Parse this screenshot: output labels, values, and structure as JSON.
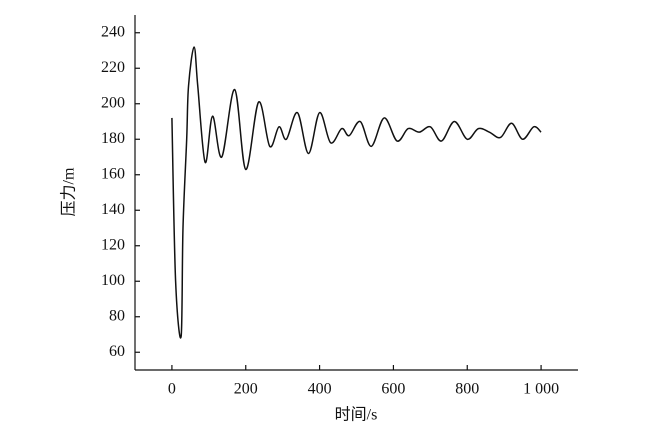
{
  "chart_data": {
    "type": "line",
    "xlabel": "时间/s",
    "ylabel": "压力/m",
    "x": [
      0,
      10,
      25,
      30,
      40,
      45,
      60,
      70,
      90,
      110,
      135,
      170,
      200,
      235,
      265,
      290,
      310,
      340,
      370,
      400,
      430,
      460,
      480,
      510,
      540,
      575,
      610,
      640,
      670,
      700,
      730,
      765,
      800,
      830,
      860,
      890,
      920,
      950,
      980,
      1000
    ],
    "series": [
      {
        "color": "#111111",
        "values": [
          192,
          100,
          69,
          130,
          180,
          210,
          232,
          210,
          167,
          193,
          170,
          208,
          163,
          201,
          176,
          187,
          180,
          195,
          172,
          195,
          178,
          186,
          182,
          190,
          176,
          192,
          179,
          186,
          184,
          187,
          179,
          190,
          180,
          186,
          184,
          181,
          189,
          180,
          187,
          184
        ]
      }
    ],
    "xlim": [
      -100,
      1100
    ],
    "xticks": [
      0,
      200,
      400,
      600,
      800,
      {
        "value": 1000,
        "label": "1 000"
      }
    ],
    "ylim": [
      50,
      250
    ],
    "yticks": [
      60,
      80,
      100,
      120,
      140,
      160,
      180,
      200,
      220,
      240
    ]
  }
}
